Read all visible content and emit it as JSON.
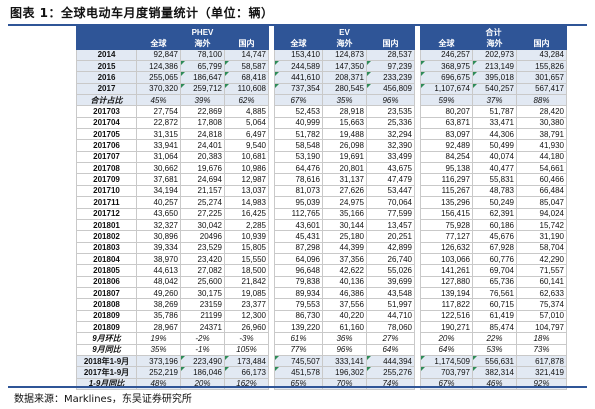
{
  "title": "图表 1：全球电动车月度销量统计（单位：辆）",
  "source": "数据来源：Marklines，东吴证券研究所",
  "groups": [
    "PHEV",
    "EV",
    "合计"
  ],
  "subheaders": [
    "全球",
    "海外",
    "国内"
  ],
  "rows": [
    {
      "label": "2014",
      "type": "yr",
      "v": [
        "92,847",
        "78,100",
        "14,747",
        "153,410",
        "124,873",
        "28,537",
        "246,257",
        "202,973",
        "43,284"
      ]
    },
    {
      "label": "2015",
      "type": "yr",
      "v": [
        "124,386",
        "65,799",
        "58,587",
        "244,589",
        "147,350",
        "97,239",
        "368,975",
        "213,149",
        "155,826"
      ]
    },
    {
      "label": "2016",
      "type": "yr",
      "v": [
        "255,065",
        "186,647",
        "68,418",
        "441,610",
        "208,371",
        "233,239",
        "696,675",
        "395,018",
        "301,657"
      ]
    },
    {
      "label": "2017",
      "type": "yr",
      "v": [
        "370,320",
        "259,712",
        "110,608",
        "737,354",
        "280,545",
        "456,809",
        "1,107,674",
        "540,257",
        "567,417"
      ]
    },
    {
      "label": "合计占比",
      "type": "sumA",
      "v": [
        "45%",
        "39%",
        "62%",
        "67%",
        "35%",
        "96%",
        "59%",
        "37%",
        "88%"
      ]
    },
    {
      "label": "201703",
      "type": "m",
      "v": [
        "27,754",
        "22,869",
        "4,885",
        "52,453",
        "28,918",
        "23,535",
        "80,207",
        "51,787",
        "28,420"
      ]
    },
    {
      "label": "201704",
      "type": "m",
      "v": [
        "22,872",
        "17,808",
        "5,064",
        "40,999",
        "15,663",
        "25,336",
        "63,871",
        "33,471",
        "30,380"
      ]
    },
    {
      "label": "201705",
      "type": "m",
      "v": [
        "31,315",
        "24,818",
        "6,497",
        "51,782",
        "19,488",
        "32,294",
        "83,097",
        "44,306",
        "38,791"
      ]
    },
    {
      "label": "201706",
      "type": "m",
      "v": [
        "33,941",
        "24,401",
        "9,540",
        "58,548",
        "26,098",
        "32,390",
        "92,489",
        "50,499",
        "41,930"
      ]
    },
    {
      "label": "201707",
      "type": "m",
      "v": [
        "31,064",
        "20,383",
        "10,681",
        "53,190",
        "19,691",
        "33,499",
        "84,254",
        "40,074",
        "44,180"
      ]
    },
    {
      "label": "201708",
      "type": "m",
      "v": [
        "30,662",
        "19,676",
        "10,986",
        "64,476",
        "20,801",
        "43,675",
        "95,138",
        "40,477",
        "54,661"
      ]
    },
    {
      "label": "201709",
      "type": "m",
      "v": [
        "37,681",
        "24,694",
        "12,987",
        "78,616",
        "31,137",
        "47,479",
        "116,297",
        "55,831",
        "60,466"
      ]
    },
    {
      "label": "201710",
      "type": "m",
      "v": [
        "34,194",
        "21,157",
        "13,037",
        "81,073",
        "27,626",
        "53,447",
        "115,267",
        "48,783",
        "66,484"
      ]
    },
    {
      "label": "201711",
      "type": "m",
      "v": [
        "40,257",
        "25,274",
        "14,983",
        "95,039",
        "24,975",
        "70,064",
        "135,296",
        "50,249",
        "85,047"
      ]
    },
    {
      "label": "201712",
      "type": "m",
      "v": [
        "43,650",
        "27,225",
        "16,425",
        "112,765",
        "35,166",
        "77,599",
        "156,415",
        "62,391",
        "94,024"
      ]
    },
    {
      "label": "201801",
      "type": "m",
      "v": [
        "32,327",
        "30,042",
        "2,285",
        "43,601",
        "30,144",
        "13,457",
        "75,928",
        "60,186",
        "15,742"
      ]
    },
    {
      "label": "201802",
      "type": "m",
      "v": [
        "30,896",
        "20496",
        "10,939",
        "45,431",
        "25,180",
        "20,251",
        "77,127",
        "45,676",
        "31,190"
      ]
    },
    {
      "label": "201803",
      "type": "m",
      "v": [
        "39,334",
        "23,529",
        "15,805",
        "87,298",
        "44,399",
        "42,899",
        "126,632",
        "67,928",
        "58,704"
      ]
    },
    {
      "label": "201804",
      "type": "m",
      "v": [
        "38,970",
        "23,420",
        "15,550",
        "64,096",
        "37,356",
        "26,740",
        "103,066",
        "60,776",
        "42,290"
      ]
    },
    {
      "label": "201805",
      "type": "m",
      "v": [
        "44,613",
        "27,082",
        "18,500",
        "96,648",
        "42,622",
        "55,026",
        "141,261",
        "69,704",
        "71,557"
      ]
    },
    {
      "label": "201806",
      "type": "m",
      "v": [
        "48,042",
        "25,600",
        "21,842",
        "79,838",
        "40,136",
        "39,699",
        "127,880",
        "65,736",
        "60,141"
      ]
    },
    {
      "label": "201807",
      "type": "m",
      "v": [
        "49,260",
        "30,175",
        "19,085",
        "89,934",
        "46,386",
        "43,548",
        "139,194",
        "76,561",
        "62,633"
      ]
    },
    {
      "label": "201808",
      "type": "m",
      "v": [
        "38,269",
        "23159",
        "23,377",
        "79,553",
        "37,556",
        "51,997",
        "117,822",
        "60,715",
        "75,374"
      ]
    },
    {
      "label": "201809",
      "type": "m",
      "v": [
        "35,786",
        "21199",
        "12,300",
        "86,730",
        "40,220",
        "44,710",
        "122,516",
        "61,419",
        "57,010"
      ]
    },
    {
      "label": "201809",
      "type": "m",
      "v": [
        "28,967",
        "24371",
        "26,960",
        "139,220",
        "61,160",
        "78,060",
        "190,271",
        "85,474",
        "104,797"
      ]
    },
    {
      "label": "9月环比",
      "type": "pct",
      "v": [
        "19%",
        "-2%",
        "-3%",
        "61%",
        "36%",
        "27%",
        "20%",
        "22%",
        "18%"
      ]
    },
    {
      "label": "9月同比",
      "type": "pct",
      "v": [
        "35%",
        "-1%",
        "105%",
        "77%",
        "96%",
        "64%",
        "64%",
        "53%",
        "73%"
      ]
    },
    {
      "label": "2018年1-9月",
      "type": "ytd",
      "v": [
        "373,196",
        "223,490",
        "173,484",
        "745,507",
        "333,141",
        "444,394",
        "1,174,509",
        "556,631",
        "617,878"
      ]
    },
    {
      "label": "2017年1-9月",
      "type": "ytd",
      "v": [
        "252,219",
        "186,046",
        "66,173",
        "451,578",
        "196,302",
        "255,276",
        "703,797",
        "382,314",
        "321,419"
      ]
    },
    {
      "label": "1-9月同比",
      "type": "ytdr",
      "v": [
        "48%",
        "20%",
        "162%",
        "65%",
        "70%",
        "74%",
        "67%",
        "46%",
        "92%"
      ]
    }
  ]
}
